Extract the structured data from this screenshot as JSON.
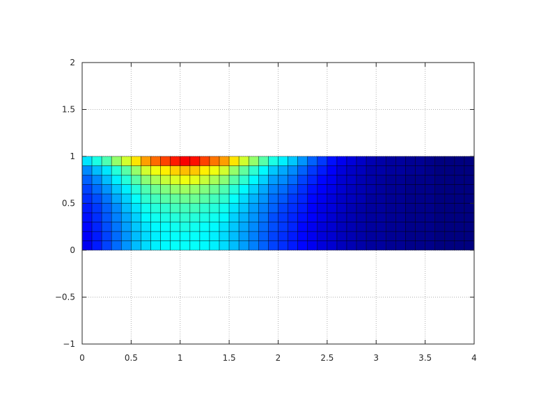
{
  "chart_data": {
    "type": "heatmap",
    "title": "",
    "xlabel": "",
    "ylabel": "",
    "xlim": [
      0,
      4
    ],
    "ylim": [
      -1,
      2
    ],
    "grid": true,
    "colormap": "jet",
    "clim": [
      0,
      1
    ],
    "x_edges_range": [
      0,
      4
    ],
    "y_edges_range": [
      0,
      1
    ],
    "xticks": [
      "0",
      "0.5",
      "1",
      "1.5",
      "2",
      "2.5",
      "3",
      "3.5",
      "4"
    ],
    "xtick_values": [
      0,
      0.5,
      1,
      1.5,
      2,
      2.5,
      3,
      3.5,
      4
    ],
    "yticks": [
      "−1",
      "−0.5",
      "0",
      "0.5",
      "1",
      "1.5",
      "2"
    ],
    "ytick_values": [
      -1,
      -0.5,
      0,
      0.5,
      1,
      1.5,
      2
    ],
    "z_rows_from_y0": [
      [
        0.11,
        0.15,
        0.19,
        0.23,
        0.27,
        0.31,
        0.34,
        0.36,
        0.37,
        0.38,
        0.38,
        0.38,
        0.37,
        0.36,
        0.34,
        0.31,
        0.28,
        0.25,
        0.22,
        0.19,
        0.17,
        0.15,
        0.13,
        0.11,
        0.09,
        0.08,
        0.06,
        0.05,
        0.04,
        0.03,
        0.03,
        0.02,
        0.02,
        0.01,
        0.01,
        0.01,
        0,
        0,
        0,
        0
      ],
      [
        0.12,
        0.15,
        0.19,
        0.23,
        0.27,
        0.31,
        0.34,
        0.36,
        0.37,
        0.38,
        0.38,
        0.38,
        0.37,
        0.36,
        0.34,
        0.31,
        0.28,
        0.25,
        0.22,
        0.19,
        0.17,
        0.15,
        0.13,
        0.11,
        0.09,
        0.08,
        0.06,
        0.05,
        0.04,
        0.03,
        0.03,
        0.02,
        0.02,
        0.01,
        0.01,
        0.01,
        0,
        0,
        0,
        0
      ],
      [
        0.13,
        0.16,
        0.2,
        0.24,
        0.28,
        0.32,
        0.35,
        0.37,
        0.38,
        0.39,
        0.4,
        0.39,
        0.38,
        0.37,
        0.35,
        0.32,
        0.29,
        0.26,
        0.23,
        0.2,
        0.18,
        0.16,
        0.13,
        0.11,
        0.09,
        0.08,
        0.06,
        0.05,
        0.04,
        0.03,
        0.03,
        0.02,
        0.02,
        0.01,
        0.01,
        0.01,
        0,
        0,
        0,
        0
      ],
      [
        0.14,
        0.17,
        0.21,
        0.25,
        0.29,
        0.33,
        0.37,
        0.39,
        0.4,
        0.41,
        0.42,
        0.41,
        0.4,
        0.39,
        0.37,
        0.33,
        0.3,
        0.27,
        0.24,
        0.2,
        0.18,
        0.16,
        0.14,
        0.12,
        0.1,
        0.08,
        0.06,
        0.05,
        0.04,
        0.03,
        0.03,
        0.02,
        0.02,
        0.01,
        0.01,
        0.01,
        0,
        0,
        0,
        0
      ],
      [
        0.15,
        0.18,
        0.22,
        0.26,
        0.31,
        0.35,
        0.39,
        0.41,
        0.42,
        0.44,
        0.44,
        0.44,
        0.42,
        0.41,
        0.39,
        0.35,
        0.32,
        0.28,
        0.25,
        0.22,
        0.19,
        0.17,
        0.15,
        0.12,
        0.1,
        0.09,
        0.07,
        0.05,
        0.04,
        0.03,
        0.03,
        0.02,
        0.02,
        0.01,
        0.01,
        0.01,
        0,
        0,
        0,
        0
      ],
      [
        0.17,
        0.2,
        0.24,
        0.29,
        0.33,
        0.38,
        0.42,
        0.44,
        0.46,
        0.47,
        0.48,
        0.48,
        0.46,
        0.44,
        0.42,
        0.38,
        0.34,
        0.3,
        0.27,
        0.23,
        0.21,
        0.18,
        0.16,
        0.13,
        0.11,
        0.09,
        0.07,
        0.06,
        0.05,
        0.03,
        0.03,
        0.02,
        0.02,
        0.01,
        0.01,
        0.01,
        0,
        0,
        0,
        0
      ],
      [
        0.19,
        0.23,
        0.27,
        0.32,
        0.36,
        0.41,
        0.45,
        0.48,
        0.5,
        0.52,
        0.53,
        0.52,
        0.5,
        0.48,
        0.45,
        0.41,
        0.37,
        0.33,
        0.29,
        0.25,
        0.23,
        0.2,
        0.17,
        0.14,
        0.12,
        0.1,
        0.08,
        0.06,
        0.05,
        0.04,
        0.03,
        0.02,
        0.02,
        0.01,
        0.01,
        0.01,
        0,
        0,
        0,
        0
      ],
      [
        0.22,
        0.26,
        0.31,
        0.36,
        0.41,
        0.46,
        0.51,
        0.54,
        0.57,
        0.59,
        0.61,
        0.6,
        0.57,
        0.54,
        0.51,
        0.46,
        0.42,
        0.37,
        0.33,
        0.28,
        0.26,
        0.23,
        0.19,
        0.16,
        0.13,
        0.11,
        0.08,
        0.07,
        0.05,
        0.04,
        0.03,
        0.02,
        0.02,
        0.01,
        0.01,
        0.01,
        0,
        0,
        0,
        0
      ],
      [
        0.26,
        0.31,
        0.35,
        0.41,
        0.46,
        0.52,
        0.58,
        0.61,
        0.64,
        0.67,
        0.69,
        0.68,
        0.64,
        0.61,
        0.58,
        0.52,
        0.47,
        0.42,
        0.37,
        0.32,
        0.29,
        0.26,
        0.22,
        0.18,
        0.15,
        0.12,
        0.09,
        0.07,
        0.06,
        0.04,
        0.04,
        0.03,
        0.03,
        0.02,
        0.02,
        0.01,
        0,
        0,
        0,
        0
      ],
      [
        0.35,
        0.4,
        0.45,
        0.52,
        0.58,
        0.65,
        0.72,
        0.77,
        0.81,
        0.85,
        0.88,
        0.86,
        0.81,
        0.76,
        0.72,
        0.65,
        0.58,
        0.52,
        0.46,
        0.4,
        0.36,
        0.32,
        0.27,
        0.22,
        0.18,
        0.14,
        0.11,
        0.09,
        0.07,
        0.05,
        0.04,
        0.03,
        0.03,
        0.02,
        0.02,
        0.01,
        0,
        0,
        0,
        0
      ]
    ]
  }
}
